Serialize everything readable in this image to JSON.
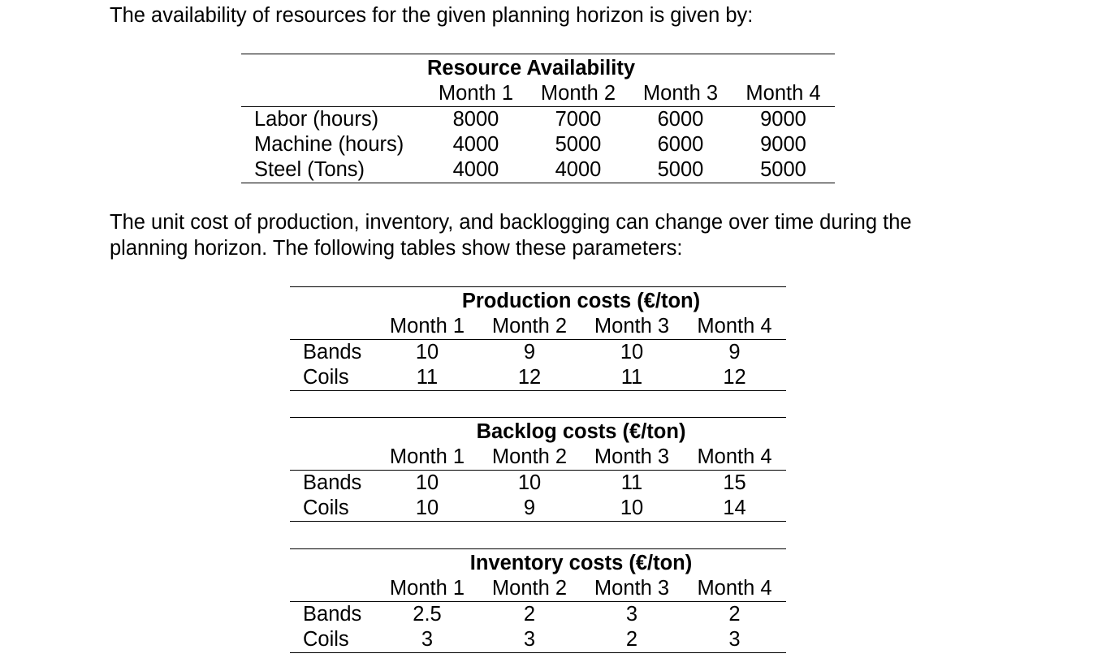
{
  "intro_text": "The availability of resources for the given planning horizon is given by:",
  "resource_table": {
    "title": "Resource Availability",
    "months": [
      "Month 1",
      "Month 2",
      "Month 3",
      "Month 4"
    ],
    "rows": [
      {
        "label": "Labor (hours)",
        "values": [
          "8000",
          "7000",
          "6000",
          "9000"
        ]
      },
      {
        "label": "Machine (hours)",
        "values": [
          "4000",
          "5000",
          "6000",
          "9000"
        ]
      },
      {
        "label": "Steel (Tons)",
        "values": [
          "4000",
          "4000",
          "5000",
          "5000"
        ]
      }
    ]
  },
  "cost_text": {
    "line1": "The unit cost of production, inventory, and backlogging can change over time during the",
    "line2": "planning horizon. The following tables show these parameters:"
  },
  "production_table": {
    "title": "Production costs (€/ton)",
    "months": [
      "Month 1",
      "Month 2",
      "Month 3",
      "Month 4"
    ],
    "rows": [
      {
        "label": "Bands",
        "values": [
          "10",
          "9",
          "10",
          "9"
        ]
      },
      {
        "label": "Coils",
        "values": [
          "11",
          "12",
          "11",
          "12"
        ]
      }
    ]
  },
  "backlog_table": {
    "title": "Backlog costs (€/ton)",
    "months": [
      "Month 1",
      "Month 2",
      "Month 3",
      "Month 4"
    ],
    "rows": [
      {
        "label": "Bands",
        "values": [
          "10",
          "10",
          "11",
          "15"
        ]
      },
      {
        "label": "Coils",
        "values": [
          "10",
          "9",
          "10",
          "14"
        ]
      }
    ]
  },
  "inventory_table": {
    "title": "Inventory costs (€/ton)",
    "months": [
      "Month 1",
      "Month 2",
      "Month 3",
      "Month 4"
    ],
    "rows": [
      {
        "label": "Bands",
        "values": [
          "2.5",
          "2",
          "3",
          "2"
        ]
      },
      {
        "label": "Coils",
        "values": [
          "3",
          "3",
          "2",
          "3"
        ]
      }
    ]
  }
}
